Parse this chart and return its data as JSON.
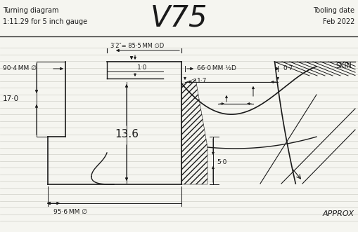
{
  "bg_color": "#f5f5f0",
  "line_color": "#1a1a1a",
  "ruled_color": "#d0d0c8",
  "title": "V75",
  "text_turning": "Turning diagram",
  "text_scale": "1:11.29 for 5 inch gauge",
  "text_tooling": "Tooling date",
  "text_date": "Feb 2022",
  "dim_85_5": "3′2″= 85·5 MM ∅D",
  "dim_90_4": "90·4 MM ∅",
  "dim_66_0": "66·0 MM ½D",
  "dim_17": "17·0",
  "dim_13_6": "13.6",
  "dim_5_0": "5·0",
  "dim_1_0": "1·0",
  "dim_1_7": "1·7",
  "dim_0_7": "0·7",
  "dim_95_6": "95·6 MM ∅",
  "dim_skin": "SKIN",
  "dim_approx": "APPROX"
}
